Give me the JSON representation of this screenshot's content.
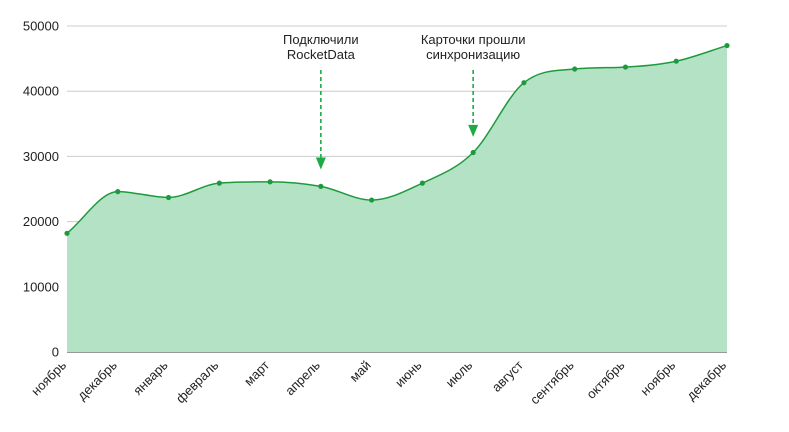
{
  "chart_data": {
    "type": "area",
    "title": "",
    "xlabel": "",
    "ylabel": "",
    "ylim": [
      0,
      50000
    ],
    "grid": true,
    "legend": "none",
    "yticks": [
      0,
      10000,
      20000,
      30000,
      40000,
      50000
    ],
    "categories": [
      "ноябрь",
      "декабрь",
      "январь",
      "февраль",
      "март",
      "апрель",
      "май",
      "июнь",
      "июль",
      "август",
      "сентябрь",
      "октябрь",
      "ноябрь",
      "декабрь"
    ],
    "series": [
      {
        "values": [
          18200,
          24600,
          23700,
          25900,
          26100,
          25400,
          23300,
          25900,
          30600,
          41300,
          43400,
          43700,
          44600,
          47000
        ]
      }
    ],
    "annotations": [
      {
        "category_index": 5,
        "lines": [
          "Подключили",
          "RocketData"
        ],
        "arrow_to": 28000
      },
      {
        "category_index": 8,
        "lines": [
          "Карточки прошли",
          "синхронизацию"
        ],
        "arrow_to": 33000
      }
    ]
  },
  "colors": {
    "line": "#1e9a3e",
    "fill": "#b3e3c4",
    "grid": "#cccccc",
    "arrow": "#1eaa46"
  }
}
